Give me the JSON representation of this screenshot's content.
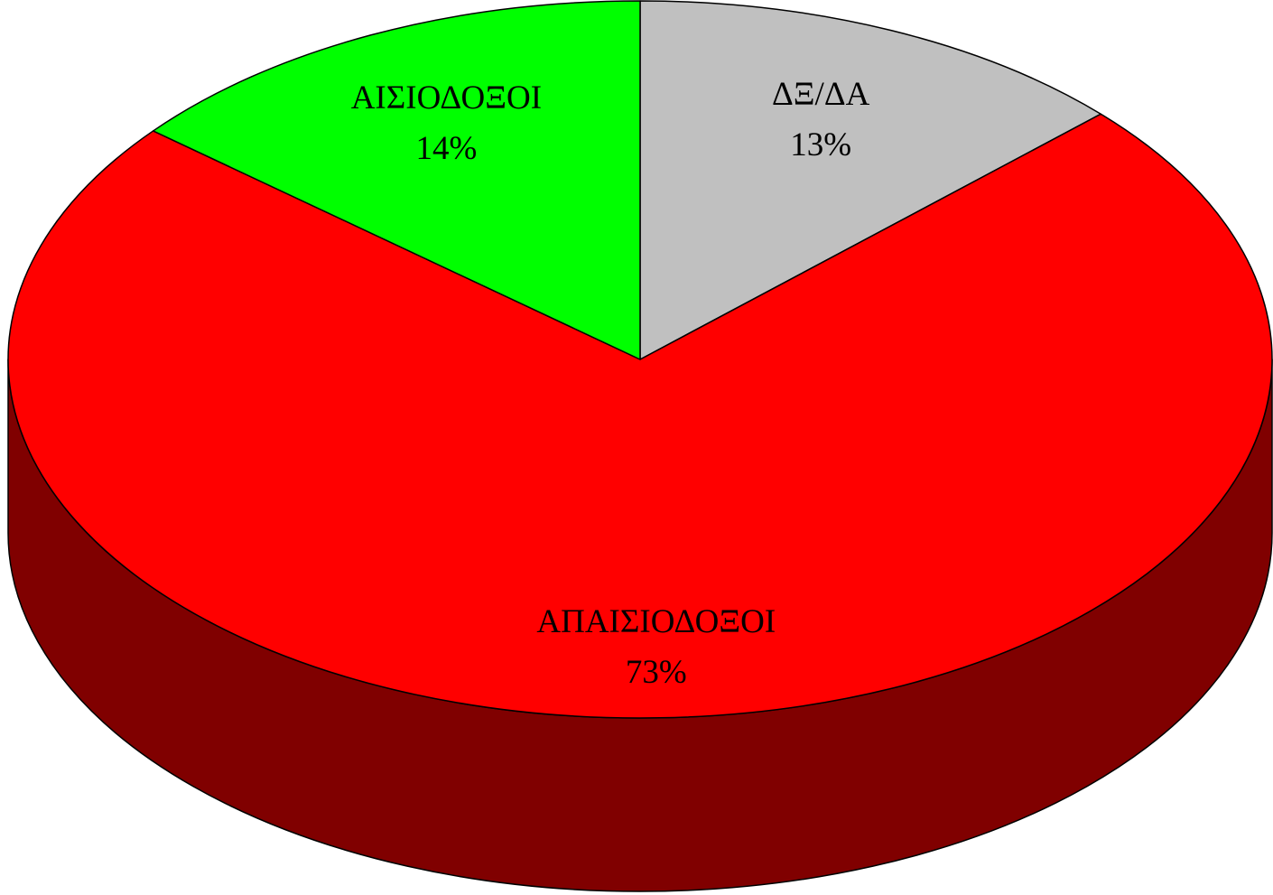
{
  "chart_data": {
    "type": "pie3d",
    "categories": [
      "ΔΞ/ΔΑ",
      "ΑΠΑΙΣΙΟΔΟΞΟΙ",
      "ΑΙΣΙΟΔΟΞΟΙ"
    ],
    "values": [
      13,
      73,
      14
    ],
    "value_labels": [
      "13%",
      "73%",
      "14%"
    ],
    "colors": [
      "#c0c0c0",
      "#ff0000",
      "#00ff00"
    ]
  }
}
